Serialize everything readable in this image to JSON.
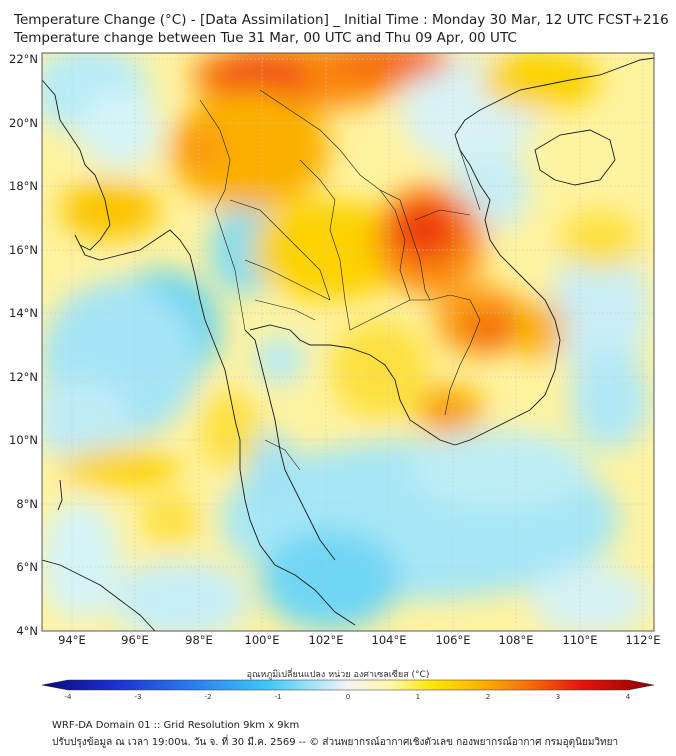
{
  "header": {
    "title_line1": "Temperature Change (°C) - [Data Assimilation] _ Initial Time : Monday 30 Mar, 12 UTC FCST+216",
    "title_line2": "Temperature change between Tue 31 Mar, 00 UTC and Thu 09 Apr, 00 UTC"
  },
  "map": {
    "lat_ticks": [
      "22°N",
      "20°N",
      "18°N",
      "16°N",
      "14°N",
      "12°N",
      "10°N",
      "8°N",
      "6°N",
      "4°N"
    ],
    "lon_ticks": [
      "94°E",
      "96°E",
      "98°E",
      "100°E",
      "102°E",
      "104°E",
      "106°E",
      "108°E",
      "110°E",
      "112°E"
    ],
    "lat_range": [
      4,
      22.2
    ],
    "lon_range": [
      93.0,
      112.3
    ]
  },
  "colorbar": {
    "label": "อุณหภูมิเปลี่ยนแปลง หน่วย องศาเซลเซียส (°C)",
    "ticks": [
      "-4",
      "-3",
      "-2",
      "-1",
      "0",
      "1",
      "2",
      "3",
      "4"
    ],
    "range": [
      -4,
      4
    ],
    "colors": [
      "#08087a",
      "#1d2fd0",
      "#2c7ff0",
      "#3fc8f5",
      "#aee6f6",
      "#f2f4f6",
      "#fff7a8",
      "#fde600",
      "#fbb000",
      "#f86a0a",
      "#e8140c",
      "#8b0000"
    ]
  },
  "footer": {
    "line1": "WRF-DA Domain 01 :: Grid Resolution 9km x 9km",
    "line2": "ปรับปรุงข้อมูล ณ เวลา 19:00น. วัน จ. ที่ 30 มี.ค. 2569 -- © ส่วนพยากรณ์อากาศเชิงตัวเลข กองพยากรณ์อากาศ กรมอุตุนิยมวิทยา"
  }
}
